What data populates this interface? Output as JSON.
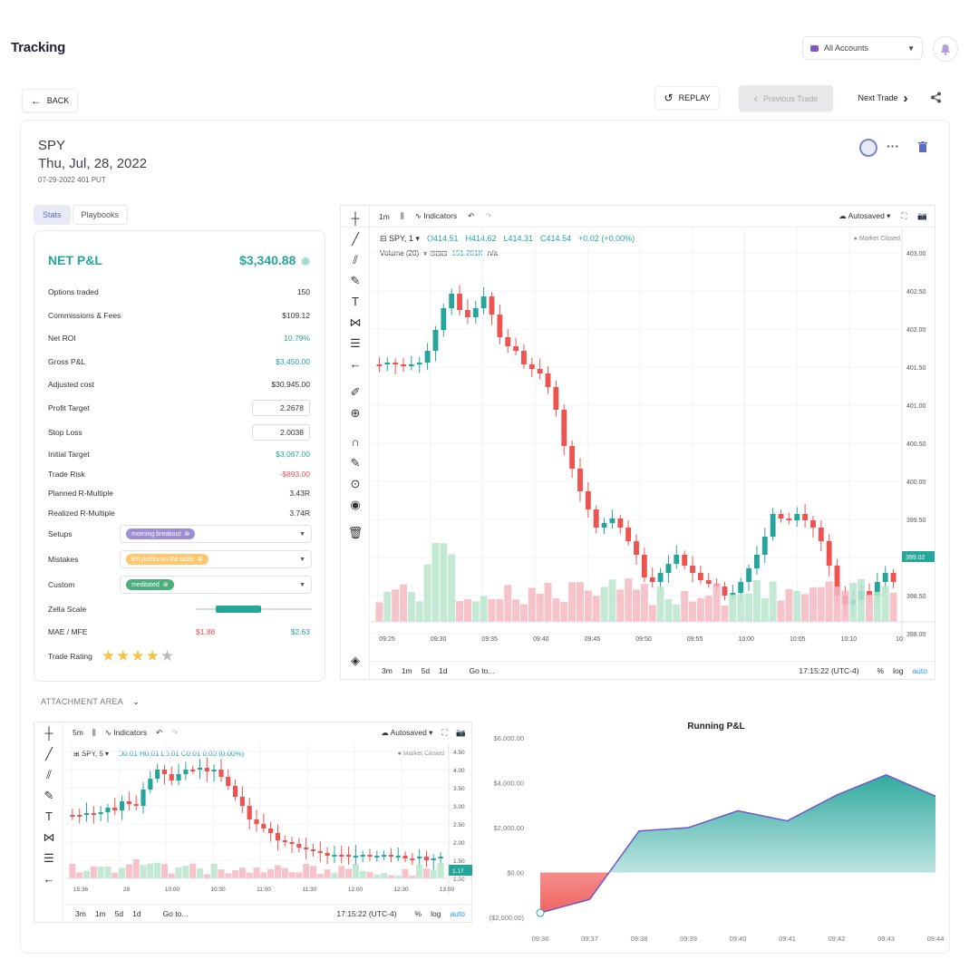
{
  "header": {
    "title": "Tracking",
    "accounts": "All Accounts"
  },
  "nav": {
    "back": "BACK",
    "replay": "REPLAY",
    "previous": "Previous Trade",
    "next": "Next Trade"
  },
  "trade": {
    "symbol": "SPY",
    "date": "Thu, Jul, 28, 2022",
    "contract": "07-29-2022 401 PUT"
  },
  "tabs": [
    "Stats",
    "Playbooks"
  ],
  "stats": {
    "net_label": "NET P&L",
    "net_value": "$3,340.88",
    "rows": [
      {
        "label": "Options traded",
        "value": "150",
        "color": ""
      },
      {
        "label": "Commissions & Fees",
        "value": "$109.12",
        "color": ""
      },
      {
        "label": "Net ROI",
        "value": "10.79%",
        "color": "green"
      },
      {
        "label": "Gross P&L",
        "value": "$3,450.00",
        "color": "green"
      },
      {
        "label": "Adjusted cost",
        "value": "$30,945.00",
        "color": ""
      }
    ],
    "profit_target_label": "Profit Target",
    "profit_target": "2.2678",
    "stop_loss_label": "Stop Loss",
    "stop_loss": "2.0038",
    "rows2": [
      {
        "label": "Initial Target",
        "value": "$3,067.00",
        "color": "green"
      },
      {
        "label": "Trade Risk",
        "value": "-$893.00",
        "color": "red"
      },
      {
        "label": "Planned R-Multiple",
        "value": "3.43R",
        "color": ""
      },
      {
        "label": "Realized R-Multiple",
        "value": "3.74R",
        "color": ""
      }
    ],
    "setups_label": "Setups",
    "setup_tag": "morning breakout",
    "mistakes_label": "Mistakes",
    "mistake_tag": "left profits on the table",
    "custom_label": "Custom",
    "custom_tag": "meditated",
    "zella_label": "Zella Scale",
    "mae_label": "MAE / MFE",
    "mae": "$1.88",
    "mfe": "$2.63",
    "rating_label": "Trade Rating",
    "rating": 4,
    "rating_max": 5
  },
  "main_chart": {
    "interval": "1m",
    "indicators": "Indicators",
    "autosaved": "Autosaved",
    "symbol": "SPY, 1",
    "ohlc": {
      "o": "O414.51",
      "h": "H414.62",
      "l": "L414.31",
      "c": "C414.54",
      "chg": "+0.02 (+0.00%)"
    },
    "volume_label": "Volume (20)",
    "volume_val": "151.201K",
    "volume_na": "n/a",
    "market_closed": "Market Closed",
    "price_labels": [
      "403.00",
      "402.50",
      "402.00",
      "401.50",
      "401.00",
      "400.50",
      "400.00",
      "399.50",
      "399.00",
      "398.50",
      "398.00"
    ],
    "current_price": "399.02",
    "time_labels": [
      "09:25",
      "09:30",
      "09:35",
      "09:40",
      "09:45",
      "09:50",
      "09:55",
      "10:00",
      "10:05",
      "10:10",
      "10:"
    ],
    "ranges": [
      "3m",
      "1m",
      "5d",
      "1d"
    ],
    "goto": "Go to...",
    "clock": "17:15:22 (UTC-4)",
    "pct": "%",
    "log": "log",
    "auto": "auto"
  },
  "attachment": {
    "label": "ATTACHMENT AREA"
  },
  "small_chart": {
    "interval": "5m",
    "indicators": "Indicators",
    "autosaved": "Autosaved",
    "symbol": "SPY, 5",
    "ohlc": "O0.01 H0.01 L0.01 C0.01 0.00 (0.00%)",
    "market_closed": "Market Closed",
    "price_labels": [
      "4.50",
      "4.00",
      "3.50",
      "3.00",
      "2.50",
      "2.00",
      "1.50",
      "1.00"
    ],
    "current_price": "1.17",
    "time_labels": [
      "15:36",
      "28",
      "10:00",
      "10:30",
      "11:00",
      "11:30",
      "12:00",
      "12:30",
      "13:00"
    ],
    "ranges": [
      "3m",
      "1m",
      "5d",
      "1d"
    ],
    "goto": "Go to...",
    "clock": "17:15:22 (UTC-4)",
    "pct": "%",
    "log": "log",
    "auto": "auto"
  },
  "chart_data": {
    "type": "area",
    "title": "Running P&L",
    "x": [
      "09:36",
      "09:37",
      "09:38",
      "09:39",
      "09:40",
      "09:41",
      "09:42",
      "09:43",
      "09:44"
    ],
    "y": [
      -1800,
      -1200,
      1850,
      2000,
      2750,
      2300,
      3450,
      4350,
      3400
    ],
    "yticks": [
      "$6,000.00",
      "$4,000.00",
      "$2,000.00",
      "$0.00",
      "($2,000.00)"
    ],
    "ylim": [
      -2000,
      6000
    ],
    "colors": {
      "positive": "#26a69a",
      "negative": "#ef5350",
      "line": "#6a5acd"
    }
  }
}
